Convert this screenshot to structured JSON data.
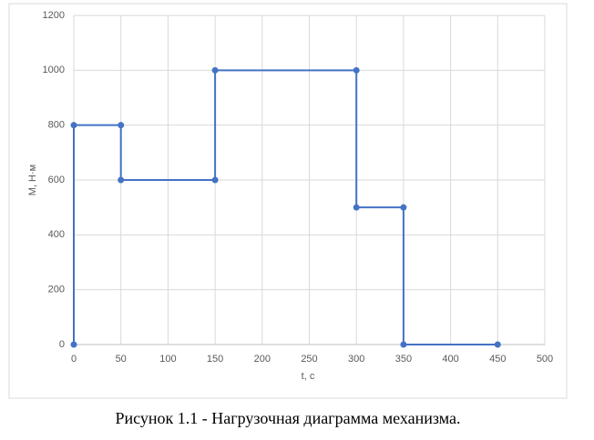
{
  "chart_data": {
    "type": "scatter",
    "x_label": "t, c",
    "y_label": "М, Н·м",
    "series": [
      {
        "color": "#4472c4",
        "x": [
          0,
          0,
          50,
          50,
          150,
          150,
          300,
          300,
          350,
          350,
          450
        ],
        "values": [
          0,
          800,
          800,
          600,
          600,
          1000,
          1000,
          500,
          500,
          0,
          0
        ]
      }
    ],
    "xlim": [
      0,
      500
    ],
    "xticks": [
      0,
      50,
      100,
      150,
      200,
      250,
      300,
      350,
      400,
      450,
      500
    ],
    "ylim": [
      0,
      1200
    ],
    "yticks": [
      0,
      200,
      400,
      600,
      800,
      1000,
      1200
    ],
    "grid": true
  },
  "caption": "Рисунок 1.1 - Нагрузочная диаграмма механизма."
}
